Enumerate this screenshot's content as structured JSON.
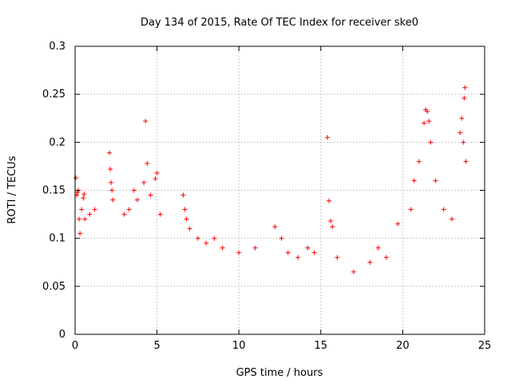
{
  "chart_data": {
    "type": "scatter",
    "title": "Day 134 of 2015, Rate Of TEC Index for receiver ske0",
    "xlabel": "GPS time / hours",
    "ylabel": "ROTI / TECUs",
    "xlim": [
      0,
      25
    ],
    "ylim": [
      0,
      0.3
    ],
    "xticks": [
      "0",
      "5",
      "10",
      "15",
      "20",
      "25"
    ],
    "yticks": [
      "0",
      "0.05",
      "0.1",
      "0.15",
      "0.2",
      "0.25",
      "0.3"
    ],
    "grid": true,
    "marker": "+",
    "color": "#ff0000",
    "series": [
      {
        "points": [
          [
            0.05,
            0.163
          ],
          [
            0.1,
            0.145
          ],
          [
            0.15,
            0.148
          ],
          [
            0.2,
            0.15
          ],
          [
            0.25,
            0.12
          ],
          [
            0.3,
            0.105
          ],
          [
            0.4,
            0.13
          ],
          [
            0.5,
            0.142
          ],
          [
            0.55,
            0.146
          ],
          [
            0.6,
            0.12
          ],
          [
            0.9,
            0.125
          ],
          [
            1.2,
            0.13
          ],
          [
            2.1,
            0.189
          ],
          [
            2.15,
            0.172
          ],
          [
            2.2,
            0.158
          ],
          [
            2.25,
            0.15
          ],
          [
            2.3,
            0.14
          ],
          [
            3.0,
            0.125
          ],
          [
            3.3,
            0.13
          ],
          [
            3.6,
            0.15
          ],
          [
            3.8,
            0.14
          ],
          [
            4.2,
            0.158
          ],
          [
            4.3,
            0.222
          ],
          [
            4.4,
            0.178
          ],
          [
            4.6,
            0.145
          ],
          [
            4.9,
            0.162
          ],
          [
            5.0,
            0.168
          ],
          [
            5.2,
            0.125
          ],
          [
            6.6,
            0.145
          ],
          [
            6.7,
            0.13
          ],
          [
            6.8,
            0.12
          ],
          [
            7.0,
            0.11
          ],
          [
            7.5,
            0.1
          ],
          [
            8.0,
            0.095
          ],
          [
            8.5,
            0.1
          ],
          [
            9.0,
            0.09
          ],
          [
            10.0,
            0.085
          ],
          [
            11.0,
            0.09
          ],
          [
            12.2,
            0.112
          ],
          [
            12.6,
            0.1
          ],
          [
            13.0,
            0.085
          ],
          [
            13.6,
            0.08
          ],
          [
            14.2,
            0.09
          ],
          [
            14.6,
            0.085
          ],
          [
            15.4,
            0.205
          ],
          [
            15.5,
            0.139
          ],
          [
            15.6,
            0.118
          ],
          [
            15.7,
            0.112
          ],
          [
            16.0,
            0.08
          ],
          [
            17.0,
            0.065
          ],
          [
            18.0,
            0.075
          ],
          [
            18.5,
            0.09
          ],
          [
            19.0,
            0.08
          ],
          [
            19.7,
            0.115
          ],
          [
            20.5,
            0.13
          ],
          [
            20.7,
            0.16
          ],
          [
            21.0,
            0.18
          ],
          [
            21.3,
            0.22
          ],
          [
            21.4,
            0.234
          ],
          [
            21.5,
            0.232
          ],
          [
            21.6,
            0.222
          ],
          [
            21.7,
            0.2
          ],
          [
            22.0,
            0.16
          ],
          [
            22.5,
            0.13
          ],
          [
            23.0,
            0.12
          ],
          [
            23.5,
            0.21
          ],
          [
            23.6,
            0.225
          ],
          [
            23.7,
            0.2
          ],
          [
            23.75,
            0.246
          ],
          [
            23.8,
            0.257
          ],
          [
            23.85,
            0.18
          ]
        ]
      }
    ]
  }
}
